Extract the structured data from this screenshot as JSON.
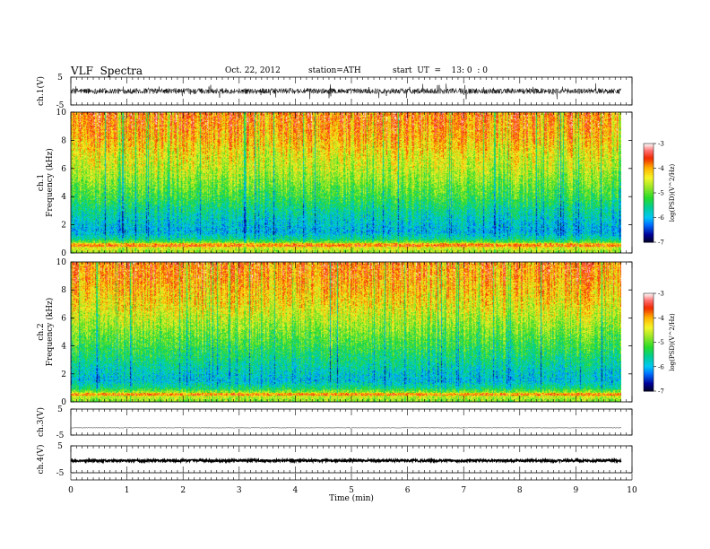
{
  "header": {
    "title": "VLF  Spectra",
    "date": "Oct. 22, 2012",
    "station": "station=ATH",
    "start": "start  UT  =    13: 0  : 0"
  },
  "chart_data": [
    {
      "type": "line",
      "panel": "ch1-waveform",
      "ylabel": "ch.1(V)",
      "ylim": [
        -5,
        5
      ],
      "yticks": [
        "5",
        "-5"
      ],
      "x_range_min": [
        0,
        9.8
      ],
      "baseline_v": 0,
      "typical_amplitude_v": 1,
      "peak_amplitude_v": 3
    },
    {
      "type": "heatmap",
      "panel": "ch1-spectrogram",
      "ylabel": "ch.1\nFrequency  (kHz)",
      "ylim": [
        0,
        10
      ],
      "yticks": [
        "0",
        "2",
        "4",
        "6",
        "8",
        "10"
      ],
      "x_range_min": [
        0,
        9.8
      ],
      "colorbar": {
        "label": "log(PSD)(V^2/Hz)",
        "range": [
          -7,
          -3
        ],
        "ticks": [
          "-3",
          "-4",
          "-5",
          "-6",
          "-7"
        ]
      },
      "psd_profile_by_freq_khz": [
        [
          0,
          -4.8
        ],
        [
          0.5,
          -4.3
        ],
        [
          1.0,
          -5.6
        ],
        [
          1.5,
          -6.0
        ],
        [
          2.0,
          -5.9
        ],
        [
          3.0,
          -5.6
        ],
        [
          4.0,
          -5.2
        ],
        [
          5.0,
          -4.9
        ],
        [
          6.0,
          -4.6
        ],
        [
          7.0,
          -4.4
        ],
        [
          8.0,
          -4.1
        ],
        [
          9.0,
          -3.9
        ],
        [
          10.0,
          -3.8
        ]
      ]
    },
    {
      "type": "heatmap",
      "panel": "ch2-spectrogram",
      "ylabel": "ch.2\nFrequency  (kHz)",
      "ylim": [
        0,
        10
      ],
      "yticks": [
        "0",
        "2",
        "4",
        "6",
        "8",
        "10"
      ],
      "x_range_min": [
        0,
        9.8
      ],
      "colorbar": {
        "label": "log(PSD)(V^2/Hz)",
        "range": [
          -7,
          -3
        ],
        "ticks": [
          "-3",
          "-4",
          "-5",
          "-6",
          "-7"
        ]
      },
      "psd_profile_by_freq_khz": [
        [
          0,
          -4.9
        ],
        [
          0.5,
          -4.4
        ],
        [
          1.0,
          -5.5
        ],
        [
          1.5,
          -5.9
        ],
        [
          2.0,
          -5.8
        ],
        [
          3.0,
          -5.5
        ],
        [
          4.0,
          -5.2
        ],
        [
          5.0,
          -4.9
        ],
        [
          6.0,
          -4.6
        ],
        [
          7.0,
          -4.3
        ],
        [
          8.0,
          -4.1
        ],
        [
          9.0,
          -3.9
        ],
        [
          10.0,
          -3.8
        ]
      ]
    },
    {
      "type": "line",
      "panel": "ch3-waveform",
      "ylabel": "ch.3(V)",
      "ylim": [
        -5,
        5
      ],
      "yticks": [
        "5",
        "-5"
      ],
      "x_range_min": [
        0,
        9.8
      ],
      "baseline_v": -2.2,
      "typical_amplitude_v": 0.1
    },
    {
      "type": "line",
      "panel": "ch4-waveform",
      "ylabel": "ch.4(V)",
      "ylim": [
        -5,
        5
      ],
      "yticks": [
        "5",
        "-5"
      ],
      "x_range_min": [
        0,
        9.8
      ],
      "baseline_v": -0.5,
      "typical_amplitude_v": 0.4
    }
  ],
  "xaxis": {
    "label": "Time  (min)",
    "ticks": [
      "0",
      "1",
      "2",
      "3",
      "4",
      "5",
      "6",
      "7",
      "8",
      "9",
      "10"
    ],
    "range": [
      0,
      10
    ]
  }
}
